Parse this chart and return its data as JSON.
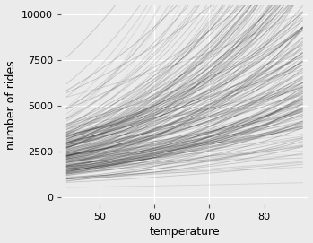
{
  "title": "",
  "xlabel": "temperature",
  "ylabel": "number of rides",
  "xlim": [
    43,
    88
  ],
  "ylim": [
    -400,
    10500
  ],
  "xticks": [
    50,
    60,
    70,
    80
  ],
  "yticks": [
    0,
    2500,
    5000,
    7500,
    10000
  ],
  "background_color": "#ebebeb",
  "grid_color": "#ffffff",
  "n_lines": 200,
  "x_start": 44,
  "x_end": 87,
  "log_intercept_mean": 6.5,
  "log_intercept_std": 0.6,
  "log_slope_mean": 0.028,
  "log_slope_std": 0.012,
  "line_alpha": 0.22,
  "line_width": 0.65,
  "seed": 42
}
